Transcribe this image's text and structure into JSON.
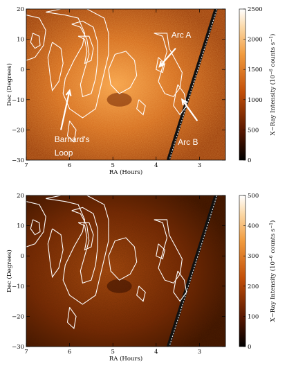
{
  "colors": {
    "map_dark": "#2a0d00",
    "map_mid": "#b84f0c",
    "map_bright": "#f39a3c",
    "contour": "#ffffff"
  },
  "chart_data": [
    {
      "type": "heatmap",
      "xlabel": "RA (Hours)",
      "ylabel": "Dec (Degrees)",
      "x_ticks": [
        "7",
        "6",
        "5",
        "4",
        "3"
      ],
      "y_ticks": [
        "20",
        "10",
        "0",
        "−10",
        "−20",
        "−30"
      ],
      "xlim": [
        7.0,
        2.4
      ],
      "ylim": [
        -30,
        20
      ],
      "colorbar": {
        "label": "X−Ray Intensity (10",
        "label_exp": "−6",
        "label_tail": " counts s",
        "label_exp2": "−1",
        "label_close": ")",
        "range": [
          0,
          2500
        ],
        "ticks": [
          "0",
          "500",
          "1000",
          "1500",
          "2000",
          "2500"
        ]
      },
      "annotations": [
        {
          "text": "Arc A",
          "ra": 3.65,
          "dec": 10.5
        },
        {
          "text": "Arc B",
          "ra": 3.5,
          "dec": -25.0
        },
        {
          "text": "Barnard's",
          "ra": 6.35,
          "dec": -24.0
        },
        {
          "text": "Loop",
          "ra": 6.35,
          "dec": -28.5
        }
      ]
    },
    {
      "type": "heatmap",
      "xlabel": "RA (Hours)",
      "ylabel": "Dec (Degrees)",
      "x_ticks": [
        "7",
        "6",
        "5",
        "4",
        "3"
      ],
      "y_ticks": [
        "20",
        "10",
        "0",
        "−10",
        "−20",
        "−30"
      ],
      "xlim": [
        7.0,
        2.4
      ],
      "ylim": [
        -30,
        20
      ],
      "colorbar": {
        "label": "X−Ray Intensity (10",
        "label_exp": "−6",
        "label_tail": " counts s",
        "label_exp2": "−1",
        "label_close": ")",
        "range": [
          0,
          500
        ],
        "ticks": [
          "0",
          "100",
          "200",
          "300",
          "400",
          "500"
        ]
      },
      "annotations": []
    }
  ]
}
